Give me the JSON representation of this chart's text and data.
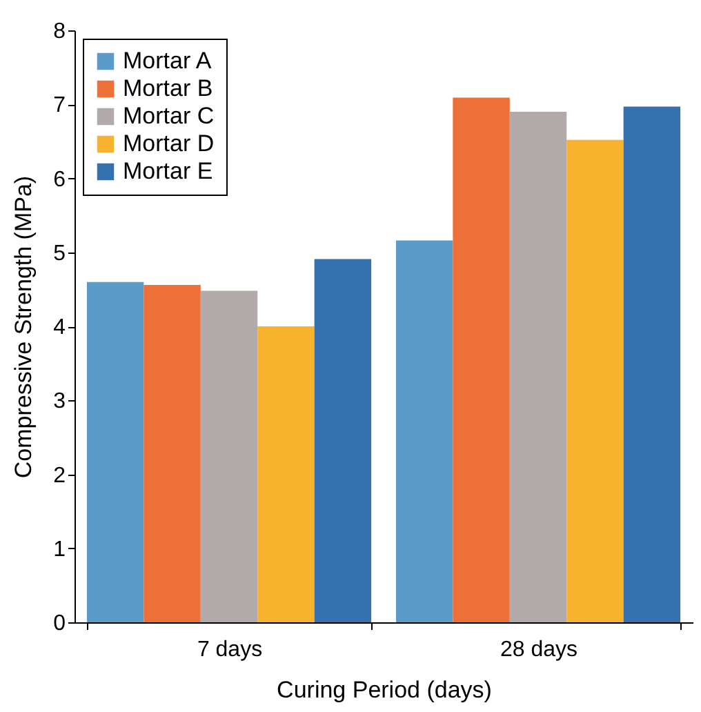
{
  "chart_data": {
    "type": "bar",
    "xlabel": "Curing Period (days)",
    "ylabel": "Compressive Strength (MPa)",
    "categories": [
      "7 days",
      "28 days"
    ],
    "series": [
      {
        "name": "Mortar A",
        "color": "#5a9bc9",
        "values": [
          4.6,
          5.16
        ]
      },
      {
        "name": "Mortar B",
        "color": "#ec7038",
        "values": [
          4.56,
          7.09
        ]
      },
      {
        "name": "Mortar C",
        "color": "#b1aaa8",
        "values": [
          4.48,
          6.9
        ]
      },
      {
        "name": "Mortar D",
        "color": "#f7b32e",
        "values": [
          4.0,
          6.52
        ]
      },
      {
        "name": "Mortar E",
        "color": "#3471ae",
        "values": [
          4.91,
          6.97
        ]
      }
    ],
    "ylim": [
      0,
      8
    ],
    "yticks": [
      0,
      1,
      2,
      3,
      4,
      5,
      6,
      7,
      8
    ],
    "legend": "top left"
  }
}
